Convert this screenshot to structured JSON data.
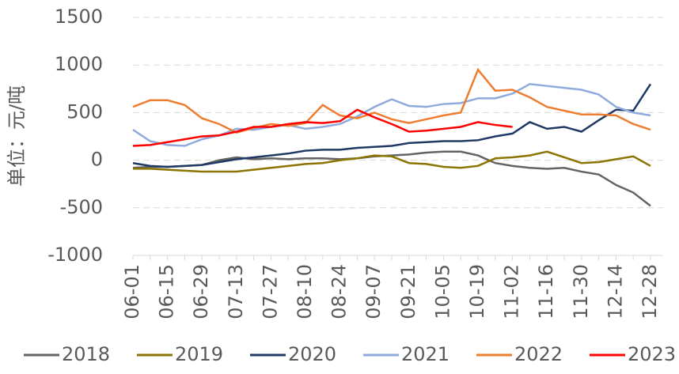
{
  "chart_data": {
    "type": "line",
    "y_label": "单位：元/吨",
    "categories": [
      "06-01",
      null,
      "06-15",
      null,
      "06-29",
      null,
      "07-13",
      null,
      "07-27",
      null,
      "08-10",
      null,
      "08-24",
      null,
      "09-07",
      null,
      "09-21",
      null,
      "10-05",
      null,
      "10-19",
      null,
      "11-02",
      null,
      "11-16",
      null,
      "11-30",
      null,
      "12-14",
      null,
      "12-28"
    ],
    "series": [
      {
        "name": "2018",
        "color": "#636363",
        "values": [
          -80,
          -70,
          -70,
          -60,
          -50,
          0,
          30,
          10,
          20,
          10,
          20,
          20,
          10,
          20,
          40,
          50,
          60,
          80,
          90,
          90,
          50,
          -30,
          -60,
          -80,
          -90,
          -80,
          -120,
          -150,
          -260,
          -340,
          -480
        ]
      },
      {
        "name": "2019",
        "color": "#8b7500",
        "values": [
          -90,
          -90,
          -100,
          -110,
          -120,
          -120,
          -120,
          -100,
          -80,
          -60,
          -40,
          -30,
          0,
          20,
          50,
          40,
          -30,
          -40,
          -70,
          -80,
          -60,
          20,
          30,
          50,
          90,
          30,
          -30,
          -20,
          10,
          40,
          -60
        ]
      },
      {
        "name": "2020",
        "color": "#1f3864",
        "values": [
          -30,
          -60,
          -70,
          -60,
          -50,
          -20,
          10,
          30,
          50,
          70,
          100,
          110,
          110,
          130,
          140,
          150,
          180,
          190,
          200,
          200,
          210,
          250,
          280,
          400,
          330,
          350,
          300,
          420,
          530,
          520,
          800
        ]
      },
      {
        "name": "2021",
        "color": "#8faadc",
        "values": [
          320,
          200,
          160,
          150,
          220,
          260,
          330,
          320,
          350,
          370,
          330,
          350,
          380,
          460,
          560,
          640,
          570,
          560,
          590,
          600,
          650,
          650,
          700,
          800,
          780,
          760,
          740,
          690,
          560,
          500,
          470
        ]
      },
      {
        "name": "2022",
        "color": "#ed7d31",
        "values": [
          560,
          630,
          630,
          580,
          440,
          380,
          290,
          340,
          380,
          360,
          390,
          580,
          470,
          440,
          500,
          430,
          390,
          430,
          470,
          500,
          950,
          730,
          740,
          660,
          560,
          520,
          480,
          480,
          470,
          380,
          320
        ]
      },
      {
        "name": "2023",
        "color": "#ff0000",
        "values": [
          150,
          160,
          190,
          220,
          250,
          260,
          300,
          350,
          350,
          380,
          400,
          390,
          410,
          530,
          450,
          380,
          300,
          310,
          330,
          350,
          400,
          370,
          350,
          null,
          null,
          null,
          null,
          null,
          null,
          null,
          null
        ]
      }
    ],
    "ylim": [
      -1000,
      1500
    ],
    "yticks": [
      -1000,
      -500,
      0,
      500,
      1000,
      1500
    ],
    "grid": true
  }
}
